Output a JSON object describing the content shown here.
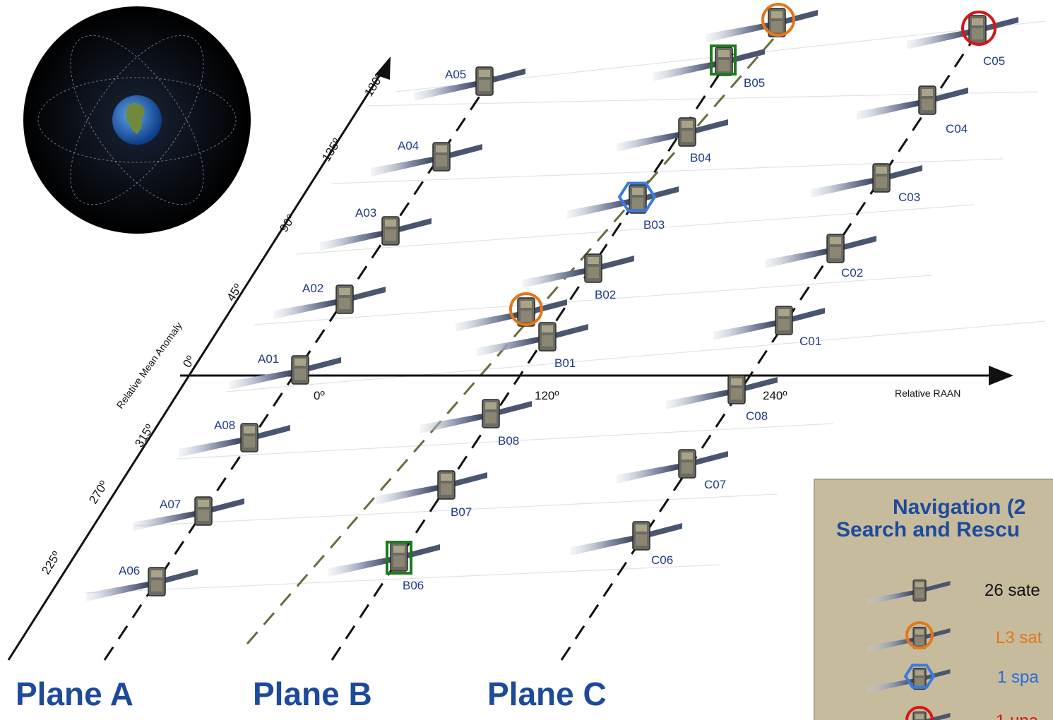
{
  "planes": [
    {
      "id": "A",
      "title": "Plane A",
      "sats": [
        "A01",
        "A02",
        "A03",
        "A04",
        "A05",
        "A08",
        "A07",
        "A06"
      ]
    },
    {
      "id": "B",
      "title": "Plane B",
      "sats": [
        "B01",
        "B02",
        "B03",
        "B04",
        "B05",
        "B08",
        "B07",
        "B06"
      ]
    },
    {
      "id": "C",
      "title": "Plane C",
      "sats": [
        "C01",
        "C02",
        "C03",
        "C04",
        "C05",
        "C08",
        "C07",
        "C06"
      ]
    }
  ],
  "anomaly_axis": {
    "title": "Relative Mean Anomaly",
    "ticks": [
      "0º",
      "45º",
      "90º",
      "135º",
      "180º",
      "315º",
      "270º",
      "225º"
    ]
  },
  "raan_axis": {
    "title": "Relative RAAN",
    "ticks": [
      "0º",
      "120º",
      "240º"
    ]
  },
  "markers": {
    "orange_circle": [
      "B01-extra",
      "B05-extra"
    ],
    "green_square": [
      "B05",
      "B06"
    ],
    "blue_hexagon": [
      "B03"
    ],
    "red_circle": [
      "C05"
    ]
  },
  "legend": {
    "title_line1": "Navigation (2",
    "title_line2": "Search and Rescu",
    "items": [
      {
        "text": "26 sate",
        "color": "#111111",
        "marker": "none"
      },
      {
        "text": "L3 sat",
        "color": "#e4761b",
        "marker": "orange-circle"
      },
      {
        "text": "1 spa",
        "color": "#2b6bde",
        "marker": "blue-hexagon"
      },
      {
        "text": "1 una",
        "color": "#d91414",
        "marker": "red-circle"
      }
    ]
  },
  "colors": {
    "plane_title": "#1e4a9c",
    "sat_label": "#1f3a8a",
    "orange": "#e4761b",
    "green": "#1f7a1f",
    "blue": "#3a7be0",
    "red": "#d91414",
    "legend_bg": "#c6bc9d"
  }
}
